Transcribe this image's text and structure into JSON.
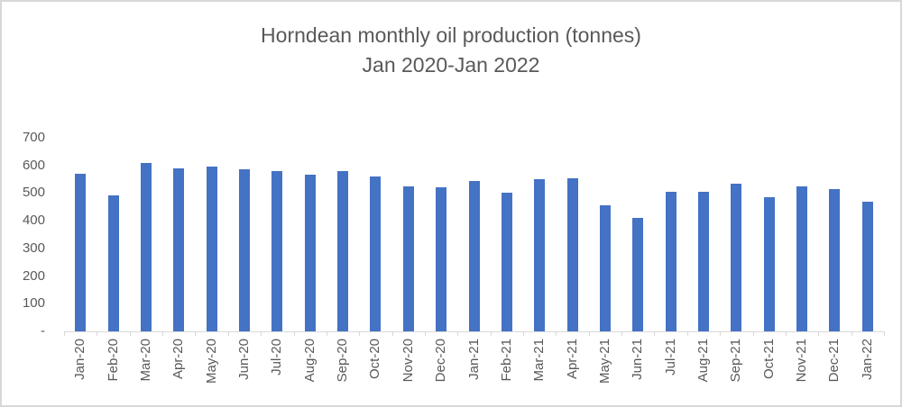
{
  "chart_data": {
    "type": "bar",
    "title_line1": "Horndean monthly oil production (tonnes)",
    "title_line2": "Jan 2020-Jan 2022",
    "categories": [
      "Jan-20",
      "Feb-20",
      "Mar-20",
      "Apr-20",
      "May-20",
      "Jun-20",
      "Jul-20",
      "Aug-20",
      "Sep-20",
      "Oct-20",
      "Nov-20",
      "Dec-20",
      "Jan-21",
      "Feb-21",
      "Mar-21",
      "Apr-21",
      "May-21",
      "Jun-21",
      "Jul-21",
      "Aug-21",
      "Sep-21",
      "Oct-21",
      "Nov-21",
      "Dec-21",
      "Jan-22"
    ],
    "values": [
      570,
      490,
      610,
      590,
      595,
      585,
      580,
      565,
      580,
      560,
      525,
      520,
      545,
      500,
      550,
      555,
      455,
      410,
      505,
      505,
      535,
      485,
      525,
      515,
      470
    ],
    "xlabel": "",
    "ylabel": "",
    "ylim": [
      0,
      700
    ],
    "ytick_interval": 100,
    "ytick_labels": [
      "-",
      "100",
      "200",
      "300",
      "400",
      "500",
      "600",
      "700"
    ],
    "grid": false,
    "legend": false,
    "bar_color": "#4472C4",
    "text_color": "#595959",
    "axis_line_color": "#D9D9D9"
  }
}
